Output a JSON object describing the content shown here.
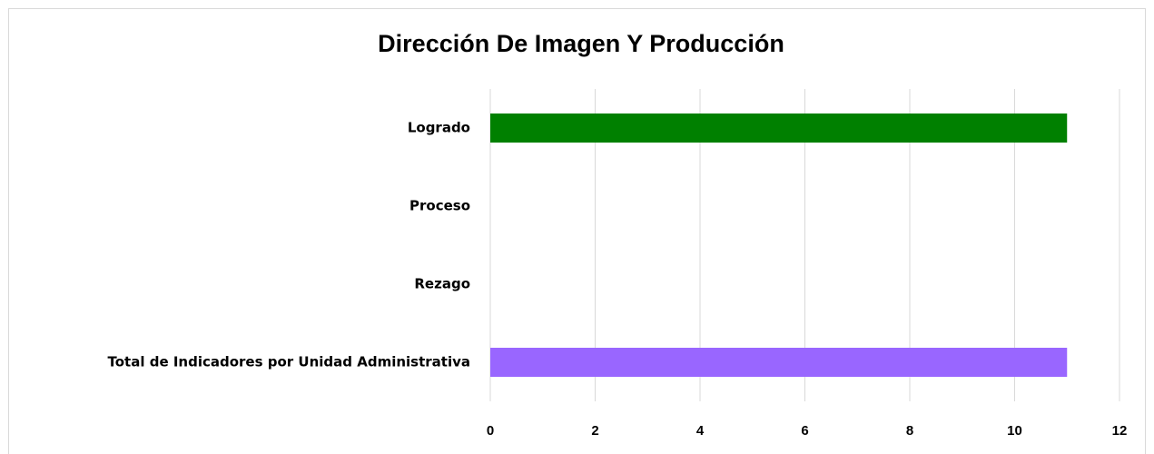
{
  "chart_data": {
    "type": "barh",
    "title": "Dirección De Imagen Y Producción",
    "categories": [
      "Logrado",
      "Proceso",
      "Rezago",
      "Total de Indicadores por Unidad Administrativa"
    ],
    "values": [
      11,
      0,
      0,
      11
    ],
    "colors": [
      "#008000",
      null,
      null,
      "#9966ff"
    ],
    "xlim": [
      0,
      12
    ],
    "xticks": [
      0,
      2,
      4,
      6,
      8,
      10,
      12
    ],
    "grid": true
  }
}
